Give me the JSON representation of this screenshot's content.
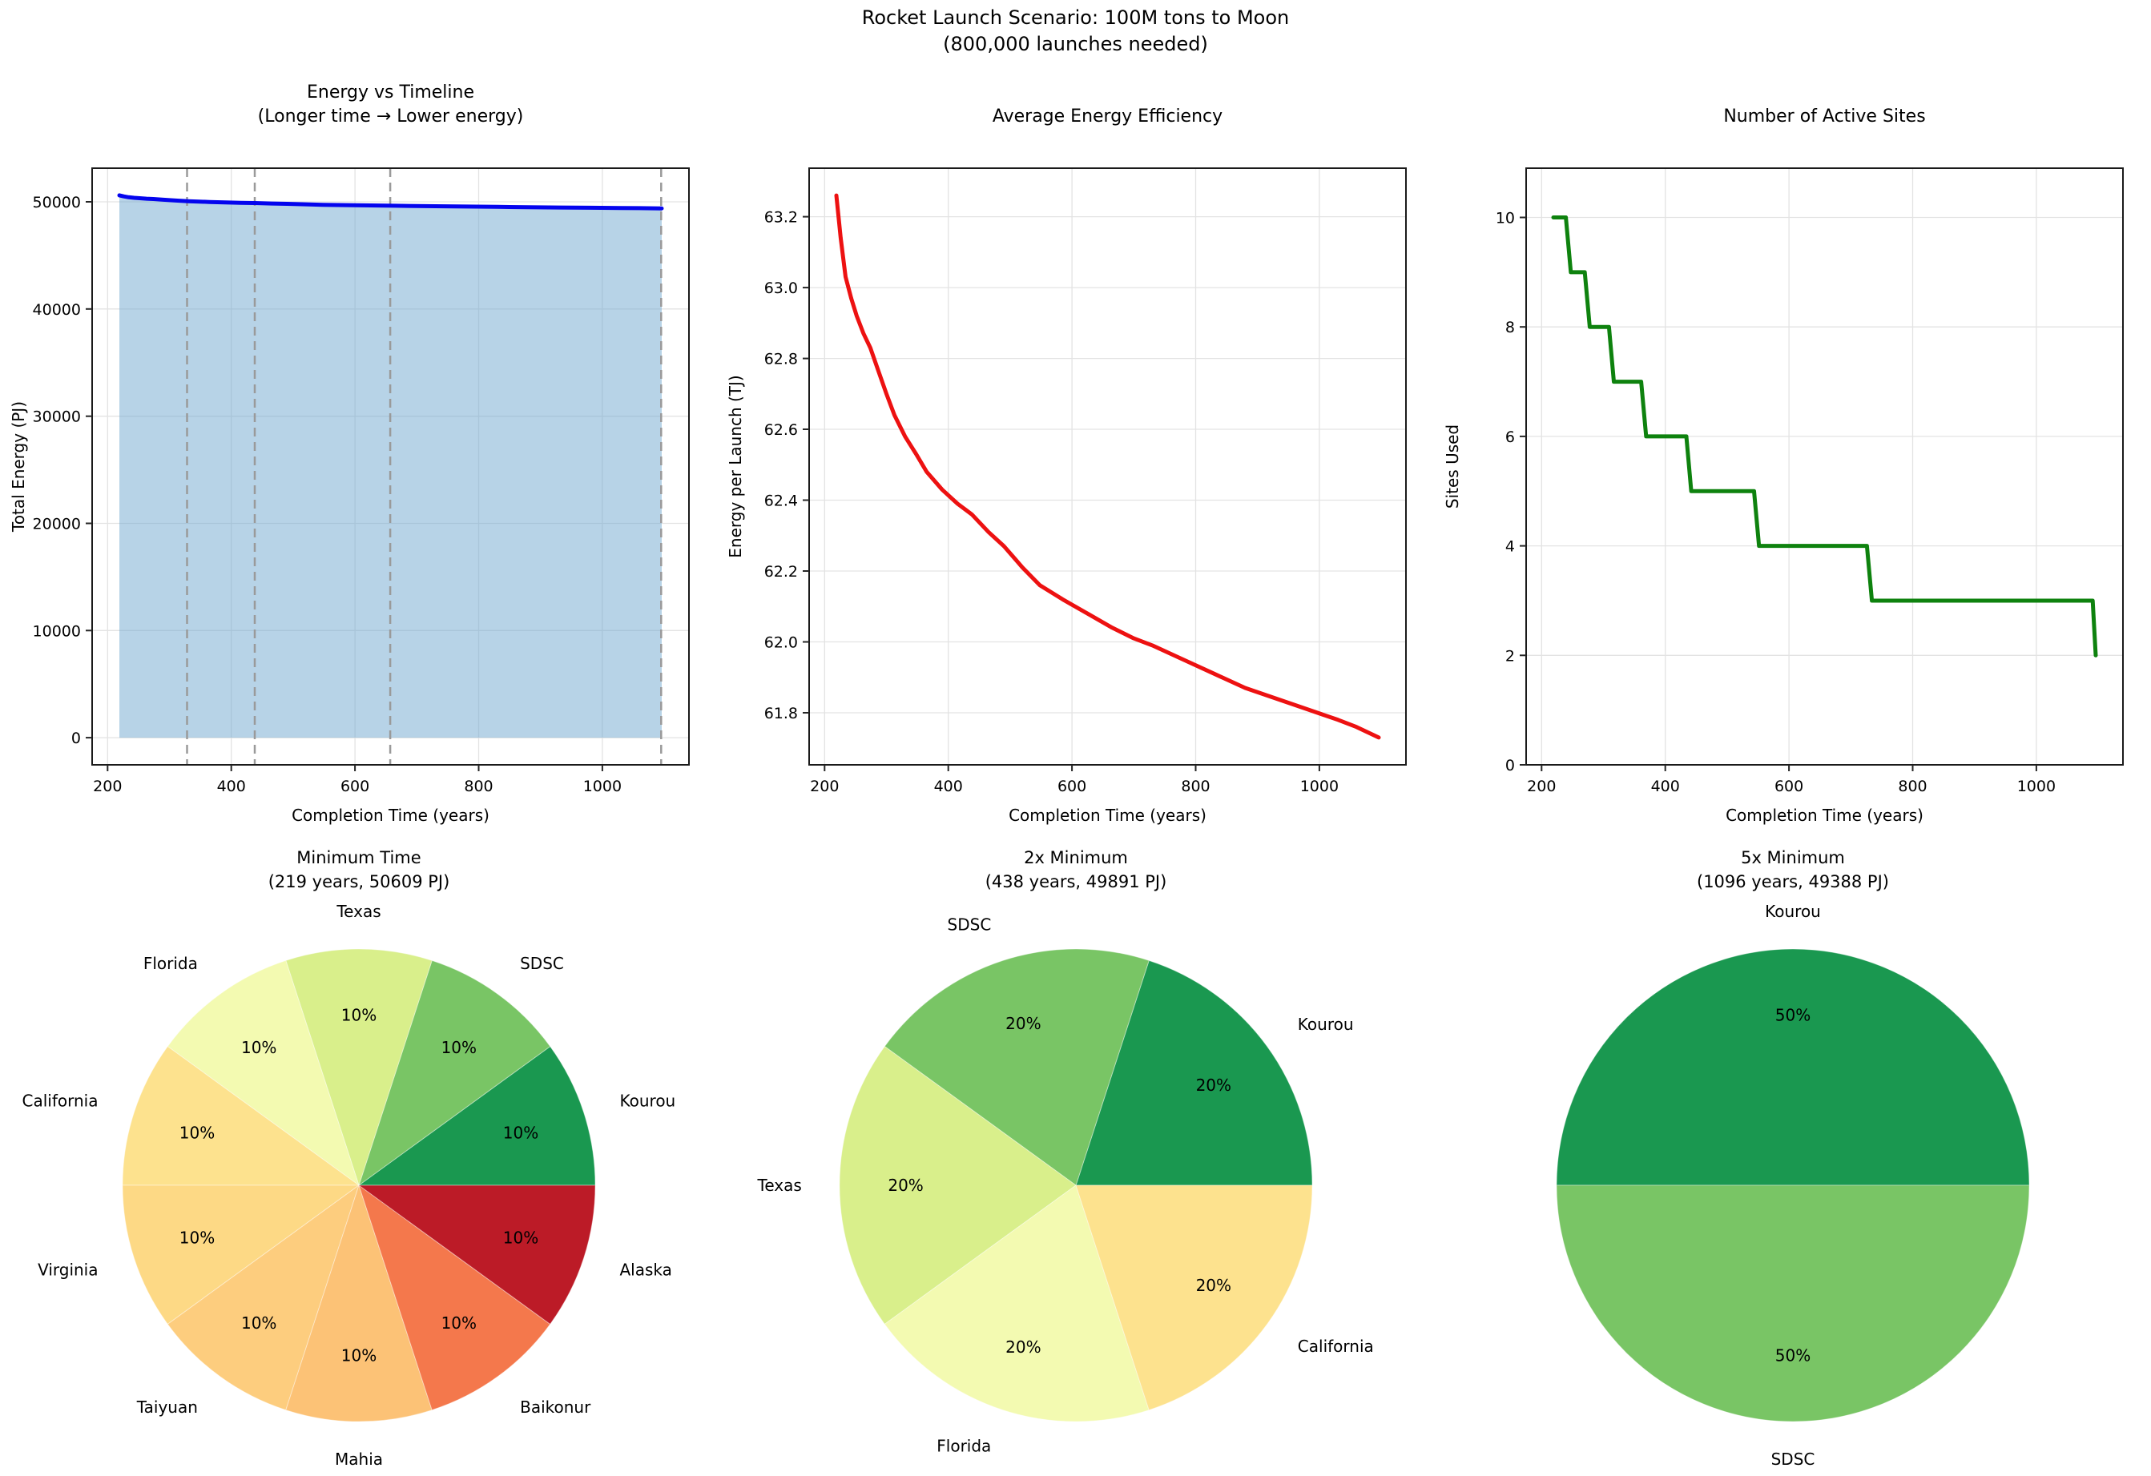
{
  "suptitle": [
    "Rocket Launch Scenario: 100M tons to Moon",
    "(800,000 launches needed)"
  ],
  "style": {
    "spine_color": "#1a1a1a",
    "grid_color": "#e3e3e3",
    "tick_color": "#262626",
    "text_color": "#000000",
    "background": "#ffffff"
  },
  "chart_data": [
    {
      "panel": "top-left",
      "type": "area",
      "title": [
        "Energy vs Timeline",
        "(Longer time → Lower energy)"
      ],
      "xlabel": "Completion Time (years)",
      "ylabel": "Total Energy (PJ)",
      "xlim": [
        175,
        1140
      ],
      "ylim": [
        -2530,
        53140
      ],
      "xticks": [
        200,
        400,
        600,
        800,
        1000
      ],
      "yticks": [
        0,
        10000,
        20000,
        30000,
        40000,
        50000
      ],
      "ydecimals": 0,
      "grid": true,
      "line_color": "#0404ee",
      "fill_color": "#6fa8cf",
      "fill_opacity": 0.5,
      "vline_color": "#9a9a9a",
      "vlines": [
        328.5,
        438,
        657,
        1095
      ],
      "points": [
        [
          219,
          50609
        ],
        [
          226,
          50512
        ],
        [
          234,
          50424
        ],
        [
          243,
          50376
        ],
        [
          252,
          50336
        ],
        [
          263,
          50296
        ],
        [
          274,
          50264
        ],
        [
          288,
          50208
        ],
        [
          300,
          50160
        ],
        [
          313,
          50112
        ],
        [
          330,
          50064
        ],
        [
          348,
          50024
        ],
        [
          365,
          49984
        ],
        [
          390,
          49944
        ],
        [
          415,
          49912
        ],
        [
          438,
          49891
        ],
        [
          465,
          49848
        ],
        [
          490,
          49816
        ],
        [
          520,
          49768
        ],
        [
          548,
          49728
        ],
        [
          585,
          49696
        ],
        [
          625,
          49664
        ],
        [
          665,
          49632
        ],
        [
          700,
          49608
        ],
        [
          730,
          49592
        ],
        [
          780,
          49560
        ],
        [
          830,
          49528
        ],
        [
          880,
          49496
        ],
        [
          930,
          49472
        ],
        [
          980,
          49448
        ],
        [
          1030,
          49424
        ],
        [
          1060,
          49408
        ],
        [
          1096,
          49388
        ]
      ]
    },
    {
      "panel": "top-center",
      "type": "line",
      "title": [
        "Average Energy Efficiency"
      ],
      "xlabel": "Completion Time (years)",
      "ylabel": "Energy per Launch (TJ)",
      "xlim": [
        175,
        1140
      ],
      "ylim": [
        61.653,
        63.337
      ],
      "xticks": [
        200,
        400,
        600,
        800,
        1000
      ],
      "yticks": [
        61.8,
        62.0,
        62.2,
        62.4,
        62.6,
        62.8,
        63.0,
        63.2
      ],
      "ydecimals": 1,
      "grid": true,
      "line_color": "#ed1111",
      "points": [
        [
          219,
          63.26
        ],
        [
          226,
          63.14
        ],
        [
          234,
          63.03
        ],
        [
          243,
          62.97
        ],
        [
          252,
          62.92
        ],
        [
          263,
          62.87
        ],
        [
          274,
          62.83
        ],
        [
          288,
          62.76
        ],
        [
          300,
          62.7
        ],
        [
          313,
          62.64
        ],
        [
          330,
          62.58
        ],
        [
          348,
          62.53
        ],
        [
          365,
          62.48
        ],
        [
          390,
          62.43
        ],
        [
          415,
          62.39
        ],
        [
          438,
          62.36
        ],
        [
          465,
          62.31
        ],
        [
          490,
          62.27
        ],
        [
          520,
          62.21
        ],
        [
          548,
          62.16
        ],
        [
          585,
          62.12
        ],
        [
          625,
          62.08
        ],
        [
          665,
          62.04
        ],
        [
          700,
          62.01
        ],
        [
          730,
          61.99
        ],
        [
          780,
          61.95
        ],
        [
          830,
          61.91
        ],
        [
          880,
          61.87
        ],
        [
          930,
          61.84
        ],
        [
          980,
          61.81
        ],
        [
          1030,
          61.78
        ],
        [
          1060,
          61.76
        ],
        [
          1096,
          61.73
        ]
      ]
    },
    {
      "panel": "top-right",
      "type": "step",
      "title": [
        "Number of Active Sites"
      ],
      "xlabel": "Completion Time (years)",
      "ylabel": "Sites Used",
      "xlim": [
        175,
        1140
      ],
      "ylim": [
        0,
        10.9
      ],
      "xticks": [
        200,
        400,
        600,
        800,
        1000
      ],
      "yticks": [
        0,
        2,
        4,
        6,
        8,
        10
      ],
      "ydecimals": 0,
      "grid": true,
      "line_color": "#0e820e",
      "steps": [
        [
          219,
          10
        ],
        [
          243.3,
          9
        ],
        [
          273.8,
          8
        ],
        [
          312.9,
          7
        ],
        [
          365,
          6
        ],
        [
          438,
          5
        ],
        [
          547.5,
          4
        ],
        [
          730,
          3
        ],
        [
          1095,
          2
        ]
      ],
      "end_x": 1096
    },
    {
      "panel": "bottom-left",
      "type": "pie",
      "title": [
        "Minimum Time",
        "(219 years, 50609 PJ)"
      ],
      "slices": [
        {
          "label": "Kourou",
          "value": 10,
          "pct": "10%",
          "color": "#1a9850"
        },
        {
          "label": "SDSC",
          "value": 10,
          "pct": "10%",
          "color": "#79c565"
        },
        {
          "label": "Texas",
          "value": 10,
          "pct": "10%",
          "color": "#d9ef8b"
        },
        {
          "label": "Florida",
          "value": 10,
          "pct": "10%",
          "color": "#f3fab1"
        },
        {
          "label": "California",
          "value": 10,
          "pct": "10%",
          "color": "#fde28e"
        },
        {
          "label": "Virginia",
          "value": 10,
          "pct": "10%",
          "color": "#fdd985"
        },
        {
          "label": "Taiyuan",
          "value": 10,
          "pct": "10%",
          "color": "#fdcd7e"
        },
        {
          "label": "Mahia",
          "value": 10,
          "pct": "10%",
          "color": "#fcc276"
        },
        {
          "label": "Baikonur",
          "value": 10,
          "pct": "10%",
          "color": "#f4784c"
        },
        {
          "label": "Alaska",
          "value": 10,
          "pct": "10%",
          "color": "#bc1b27"
        }
      ]
    },
    {
      "panel": "bottom-center",
      "type": "pie",
      "title": [
        "2x Minimum",
        "(438 years, 49891 PJ)"
      ],
      "slices": [
        {
          "label": "Kourou",
          "value": 20,
          "pct": "20%",
          "color": "#1a9850"
        },
        {
          "label": "SDSC",
          "value": 20,
          "pct": "20%",
          "color": "#79c565"
        },
        {
          "label": "Texas",
          "value": 20,
          "pct": "20%",
          "color": "#d9ef8b"
        },
        {
          "label": "Florida",
          "value": 20,
          "pct": "20%",
          "color": "#f3fab1"
        },
        {
          "label": "California",
          "value": 20,
          "pct": "20%",
          "color": "#fde28e"
        }
      ]
    },
    {
      "panel": "bottom-right",
      "type": "pie",
      "title": [
        "5x Minimum",
        "(1096 years, 49388 PJ)"
      ],
      "slices": [
        {
          "label": "Kourou",
          "value": 50,
          "pct": "50%",
          "color": "#1a9850"
        },
        {
          "label": "SDSC",
          "value": 50,
          "pct": "50%",
          "color": "#79c565"
        }
      ]
    }
  ]
}
